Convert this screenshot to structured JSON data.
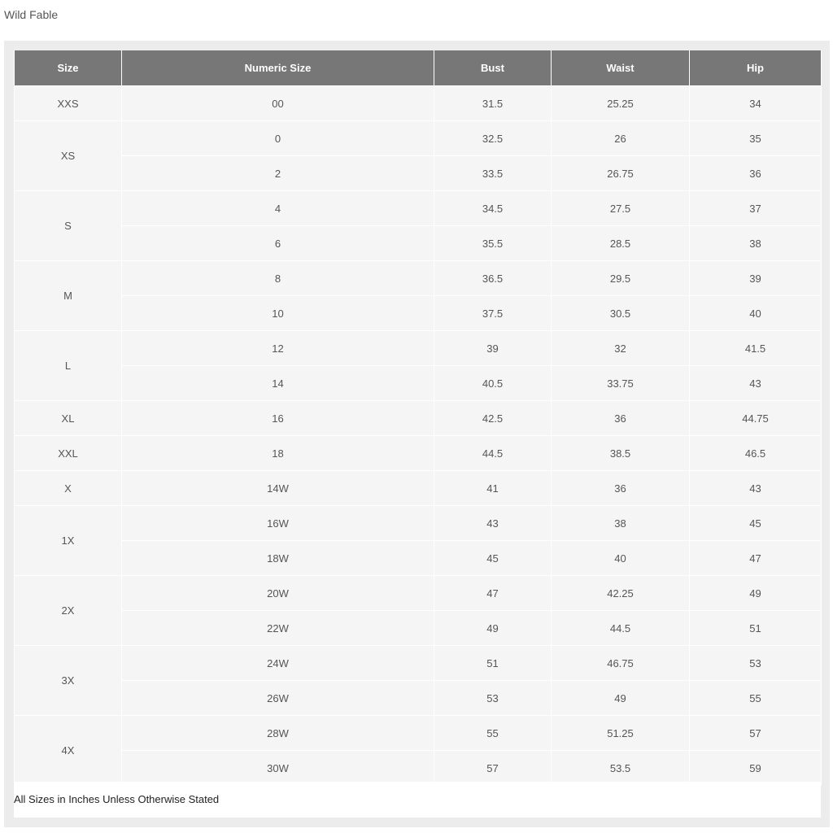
{
  "title": "Wild Fable",
  "headers": [
    "Size",
    "Numeric Size",
    "Bust",
    "Waist",
    "Hip"
  ],
  "groups": [
    {
      "size": "XXS",
      "rows": [
        [
          "00",
          "31.5",
          "25.25",
          "34"
        ]
      ]
    },
    {
      "size": "XS",
      "rows": [
        [
          "0",
          "32.5",
          "26",
          "35"
        ],
        [
          "2",
          "33.5",
          "26.75",
          "36"
        ]
      ]
    },
    {
      "size": "S",
      "rows": [
        [
          "4",
          "34.5",
          "27.5",
          "37"
        ],
        [
          "6",
          "35.5",
          "28.5",
          "38"
        ]
      ]
    },
    {
      "size": "M",
      "rows": [
        [
          "8",
          "36.5",
          "29.5",
          "39"
        ],
        [
          "10",
          "37.5",
          "30.5",
          "40"
        ]
      ]
    },
    {
      "size": "L",
      "rows": [
        [
          "12",
          "39",
          "32",
          "41.5"
        ],
        [
          "14",
          "40.5",
          "33.75",
          "43"
        ]
      ]
    },
    {
      "size": "XL",
      "rows": [
        [
          "16",
          "42.5",
          "36",
          "44.75"
        ]
      ]
    },
    {
      "size": "XXL",
      "rows": [
        [
          "18",
          "44.5",
          "38.5",
          "46.5"
        ]
      ]
    },
    {
      "size": "X",
      "rows": [
        [
          "14W",
          "41",
          "36",
          "43"
        ]
      ]
    },
    {
      "size": "1X",
      "rows": [
        [
          "16W",
          "43",
          "38",
          "45"
        ],
        [
          "18W",
          "45",
          "40",
          "47"
        ]
      ]
    },
    {
      "size": "2X",
      "rows": [
        [
          "20W",
          "47",
          "42.25",
          "49"
        ],
        [
          "22W",
          "49",
          "44.5",
          "51"
        ]
      ]
    },
    {
      "size": "3X",
      "rows": [
        [
          "24W",
          "51",
          "46.75",
          "53"
        ],
        [
          "26W",
          "53",
          "49",
          "55"
        ]
      ]
    },
    {
      "size": "4X",
      "rows": [
        [
          "28W",
          "55",
          "51.25",
          "57"
        ],
        [
          "30W",
          "57",
          "53.5",
          "59"
        ]
      ]
    }
  ],
  "footnote": "All Sizes in Inches Unless Otherwise Stated"
}
